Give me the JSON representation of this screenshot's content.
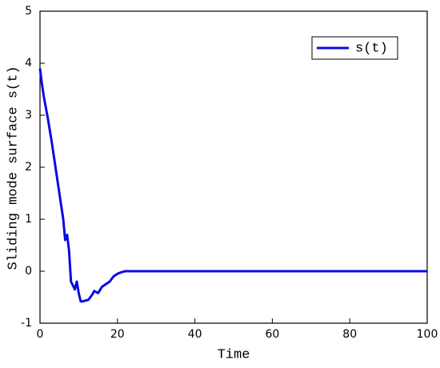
{
  "chart_data": {
    "type": "line",
    "xlabel": "Time",
    "ylabel": "Sliding mode surface s(t)",
    "x": [
      0,
      0.5,
      1,
      2,
      3,
      4,
      5,
      6,
      6.5,
      7,
      7.5,
      8,
      9,
      9.5,
      10,
      10.5,
      11,
      12.5,
      13.5,
      14,
      15,
      16,
      18,
      19,
      20,
      21,
      22,
      30,
      50,
      100
    ],
    "series": [
      {
        "name": "s(t)",
        "color": "#0a0ae6",
        "values": [
          3.9,
          3.6,
          3.35,
          2.95,
          2.5,
          2.0,
          1.5,
          1.0,
          0.6,
          0.7,
          0.4,
          -0.2,
          -0.35,
          -0.2,
          -0.42,
          -0.58,
          -0.58,
          -0.55,
          -0.45,
          -0.38,
          -0.42,
          -0.3,
          -0.2,
          -0.1,
          -0.05,
          -0.02,
          0,
          0,
          0,
          0
        ]
      }
    ],
    "xlim": [
      0,
      100
    ],
    "xticks": [
      0,
      20,
      40,
      60,
      80,
      100
    ],
    "ylim": [
      -1,
      5
    ],
    "yticks": [
      -1,
      0,
      1,
      2,
      3,
      4,
      5
    ],
    "legend": "upper right"
  }
}
